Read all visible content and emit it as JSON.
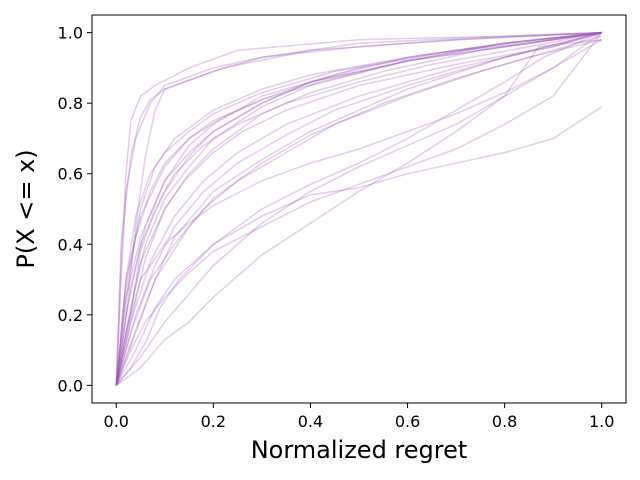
{
  "chart_data": {
    "type": "line",
    "title": "",
    "xlabel": "Normalized regret",
    "ylabel": "P(X <= x)",
    "xlim": [
      -0.05,
      1.05
    ],
    "ylim": [
      -0.05,
      1.05
    ],
    "xticks": [
      0.0,
      0.2,
      0.4,
      0.6,
      0.8,
      1.0
    ],
    "xtick_labels": [
      "0.0",
      "0.2",
      "0.4",
      "0.6",
      "0.8",
      "1.0"
    ],
    "yticks": [
      0.0,
      0.2,
      0.4,
      0.6,
      0.8,
      1.0
    ],
    "ytick_labels": [
      "0.0",
      "0.2",
      "0.4",
      "0.6",
      "0.8",
      "1.0"
    ],
    "grid": false,
    "legend": "none",
    "line_color": "#9b59b6",
    "series": [
      {
        "x": [
          0,
          0.01,
          0.02,
          0.03,
          0.05,
          0.08,
          0.15,
          0.25,
          0.5,
          0.8,
          1.0
        ],
        "y": [
          0,
          0.35,
          0.6,
          0.75,
          0.82,
          0.85,
          0.9,
          0.95,
          0.98,
          0.99,
          1.0
        ]
      },
      {
        "x": [
          0,
          0.01,
          0.02,
          0.04,
          0.07,
          0.1,
          0.2,
          0.3,
          0.5,
          0.8,
          1.0
        ],
        "y": [
          0,
          0.3,
          0.55,
          0.7,
          0.8,
          0.85,
          0.9,
          0.93,
          0.97,
          0.99,
          1.0
        ]
      },
      {
        "x": [
          0,
          0.02,
          0.04,
          0.06,
          0.08,
          0.1,
          0.22,
          0.4,
          0.7,
          1.0
        ],
        "y": [
          0,
          0.2,
          0.45,
          0.65,
          0.78,
          0.84,
          0.9,
          0.95,
          0.98,
          1.0
        ]
      },
      {
        "x": [
          0,
          0.02,
          0.05,
          0.1,
          0.15,
          0.2,
          0.3,
          0.4,
          0.6,
          0.8,
          1.0
        ],
        "y": [
          0,
          0.2,
          0.4,
          0.55,
          0.65,
          0.72,
          0.8,
          0.86,
          0.92,
          0.97,
          1.0
        ]
      },
      {
        "x": [
          0,
          0.02,
          0.05,
          0.1,
          0.15,
          0.2,
          0.3,
          0.45,
          0.6,
          0.8,
          1.0
        ],
        "y": [
          0,
          0.25,
          0.42,
          0.58,
          0.68,
          0.74,
          0.82,
          0.88,
          0.93,
          0.97,
          1.0
        ]
      },
      {
        "x": [
          0,
          0.02,
          0.05,
          0.1,
          0.15,
          0.2,
          0.3,
          0.4,
          0.55,
          0.75,
          1.0
        ],
        "y": [
          0,
          0.15,
          0.35,
          0.5,
          0.6,
          0.67,
          0.77,
          0.83,
          0.89,
          0.95,
          1.0
        ]
      },
      {
        "x": [
          0,
          0.03,
          0.06,
          0.1,
          0.15,
          0.2,
          0.3,
          0.4,
          0.6,
          0.8,
          1.0
        ],
        "y": [
          0,
          0.22,
          0.4,
          0.53,
          0.62,
          0.7,
          0.79,
          0.85,
          0.92,
          0.96,
          1.0
        ]
      },
      {
        "x": [
          0,
          0.03,
          0.07,
          0.12,
          0.18,
          0.25,
          0.35,
          0.5,
          0.7,
          0.9,
          1.0
        ],
        "y": [
          0,
          0.18,
          0.35,
          0.48,
          0.58,
          0.66,
          0.74,
          0.82,
          0.9,
          0.96,
          1.0
        ]
      },
      {
        "x": [
          0,
          0.02,
          0.05,
          0.1,
          0.15,
          0.22,
          0.3,
          0.42,
          0.6,
          0.8,
          1.0
        ],
        "y": [
          0,
          0.3,
          0.48,
          0.62,
          0.7,
          0.76,
          0.81,
          0.86,
          0.92,
          0.96,
          1.0
        ]
      },
      {
        "x": [
          0,
          0.03,
          0.08,
          0.12,
          0.2,
          0.3,
          0.4,
          0.5,
          0.6,
          0.8,
          1.0
        ],
        "y": [
          0,
          0.12,
          0.3,
          0.42,
          0.55,
          0.64,
          0.72,
          0.78,
          0.84,
          0.93,
          1.0
        ]
      },
      {
        "x": [
          0,
          0.04,
          0.08,
          0.15,
          0.2,
          0.3,
          0.4,
          0.55,
          0.7,
          0.85,
          1.0
        ],
        "y": [
          0,
          0.15,
          0.3,
          0.45,
          0.53,
          0.63,
          0.71,
          0.8,
          0.87,
          0.93,
          0.98
        ]
      },
      {
        "x": [
          0,
          0.03,
          0.06,
          0.1,
          0.15,
          0.2,
          0.3,
          0.4,
          0.5,
          0.7,
          1.0
        ],
        "y": [
          0,
          0.28,
          0.45,
          0.58,
          0.66,
          0.72,
          0.8,
          0.86,
          0.9,
          0.95,
          1.0
        ]
      },
      {
        "x": [
          0,
          0.04,
          0.08,
          0.12,
          0.18,
          0.25,
          0.35,
          0.45,
          0.6,
          0.8,
          1.0
        ],
        "y": [
          0,
          0.2,
          0.34,
          0.45,
          0.55,
          0.63,
          0.71,
          0.78,
          0.85,
          0.93,
          1.0
        ]
      },
      {
        "x": [
          0,
          0.02,
          0.05,
          0.08,
          0.12,
          0.2,
          0.3,
          0.4,
          0.6,
          0.8,
          1.0
        ],
        "y": [
          0,
          0.28,
          0.5,
          0.62,
          0.7,
          0.78,
          0.84,
          0.88,
          0.93,
          0.97,
          1.0
        ]
      },
      {
        "x": [
          0,
          0.03,
          0.06,
          0.1,
          0.14,
          0.2,
          0.26,
          0.35,
          0.5,
          0.7,
          0.9,
          1.0
        ],
        "y": [
          0,
          0.18,
          0.36,
          0.5,
          0.58,
          0.66,
          0.72,
          0.78,
          0.85,
          0.91,
          0.96,
          1.0
        ]
      },
      {
        "x": [
          0,
          0.02,
          0.04,
          0.07,
          0.1,
          0.15,
          0.2,
          0.3,
          0.45,
          0.65,
          0.85,
          1.0
        ],
        "y": [
          0,
          0.3,
          0.48,
          0.6,
          0.66,
          0.72,
          0.77,
          0.83,
          0.89,
          0.94,
          0.97,
          1.0
        ]
      },
      {
        "x": [
          0,
          0.03,
          0.07,
          0.12,
          0.18,
          0.25,
          0.35,
          0.45,
          0.6,
          0.75,
          0.9,
          1.0
        ],
        "y": [
          0,
          0.15,
          0.3,
          0.4,
          0.5,
          0.58,
          0.66,
          0.74,
          0.82,
          0.89,
          0.95,
          0.99
        ]
      },
      {
        "x": [
          0,
          0.04,
          0.08,
          0.12,
          0.2,
          0.3,
          0.4,
          0.5,
          0.6,
          0.7,
          0.8,
          0.88,
          1.0
        ],
        "y": [
          0,
          0.1,
          0.22,
          0.3,
          0.4,
          0.5,
          0.57,
          0.63,
          0.7,
          0.78,
          0.86,
          0.93,
          1.0
        ]
      },
      {
        "x": [
          0,
          0.05,
          0.1,
          0.15,
          0.2,
          0.3,
          0.4,
          0.5,
          0.6,
          0.7,
          0.8,
          0.9,
          1.0
        ],
        "y": [
          0,
          0.08,
          0.18,
          0.26,
          0.34,
          0.46,
          0.55,
          0.62,
          0.68,
          0.74,
          0.82,
          0.9,
          0.98
        ]
      },
      {
        "x": [
          0,
          0.03,
          0.06,
          0.1,
          0.15,
          0.2,
          0.3,
          0.4,
          0.5,
          0.6,
          0.7,
          0.8,
          0.9,
          1.0
        ],
        "y": [
          0,
          0.1,
          0.18,
          0.25,
          0.32,
          0.38,
          0.45,
          0.52,
          0.57,
          0.62,
          0.67,
          0.74,
          0.82,
          1.0
        ]
      },
      {
        "x": [
          0,
          0.05,
          0.1,
          0.15,
          0.2,
          0.3,
          0.4,
          0.5,
          0.6,
          0.7,
          0.8,
          0.87,
          1.0
        ],
        "y": [
          0,
          0.05,
          0.13,
          0.18,
          0.25,
          0.37,
          0.46,
          0.55,
          0.63,
          0.72,
          0.82,
          0.96,
          0.98
        ]
      },
      {
        "x": [
          0,
          0.03,
          0.06,
          0.09,
          0.13,
          0.2,
          0.3,
          0.4,
          0.5,
          0.6,
          0.7,
          0.8,
          0.9,
          1.0
        ],
        "y": [
          0,
          0.05,
          0.12,
          0.22,
          0.3,
          0.4,
          0.48,
          0.54,
          0.56,
          0.6,
          0.63,
          0.66,
          0.7,
          0.79
        ]
      },
      {
        "x": [
          0,
          0.02,
          0.05,
          0.1,
          0.15,
          0.2,
          0.3,
          0.4,
          0.5,
          0.6,
          0.7,
          0.8,
          0.9,
          1.0
        ],
        "y": [
          0,
          0.15,
          0.3,
          0.4,
          0.46,
          0.51,
          0.58,
          0.63,
          0.67,
          0.72,
          0.77,
          0.83,
          0.9,
          1.0
        ]
      },
      {
        "x": [
          0,
          0.01,
          0.03,
          0.05,
          0.07,
          0.1,
          0.2,
          0.3,
          0.5,
          0.7,
          1.0
        ],
        "y": [
          0,
          0.4,
          0.65,
          0.76,
          0.81,
          0.84,
          0.89,
          0.93,
          0.96,
          0.98,
          1.0
        ]
      },
      {
        "x": [
          0,
          0.02,
          0.04,
          0.07,
          0.1,
          0.15,
          0.2,
          0.3,
          0.4,
          0.6,
          0.8,
          1.0
        ],
        "y": [
          0,
          0.25,
          0.42,
          0.55,
          0.63,
          0.7,
          0.75,
          0.81,
          0.86,
          0.92,
          0.97,
          1.0
        ]
      },
      {
        "x": [
          0,
          0.03,
          0.05,
          0.08,
          0.12,
          0.18,
          0.25,
          0.35,
          0.5,
          0.65,
          0.85,
          1.0
        ],
        "y": [
          0,
          0.2,
          0.38,
          0.5,
          0.6,
          0.68,
          0.74,
          0.8,
          0.86,
          0.91,
          0.96,
          1.0
        ]
      }
    ]
  }
}
